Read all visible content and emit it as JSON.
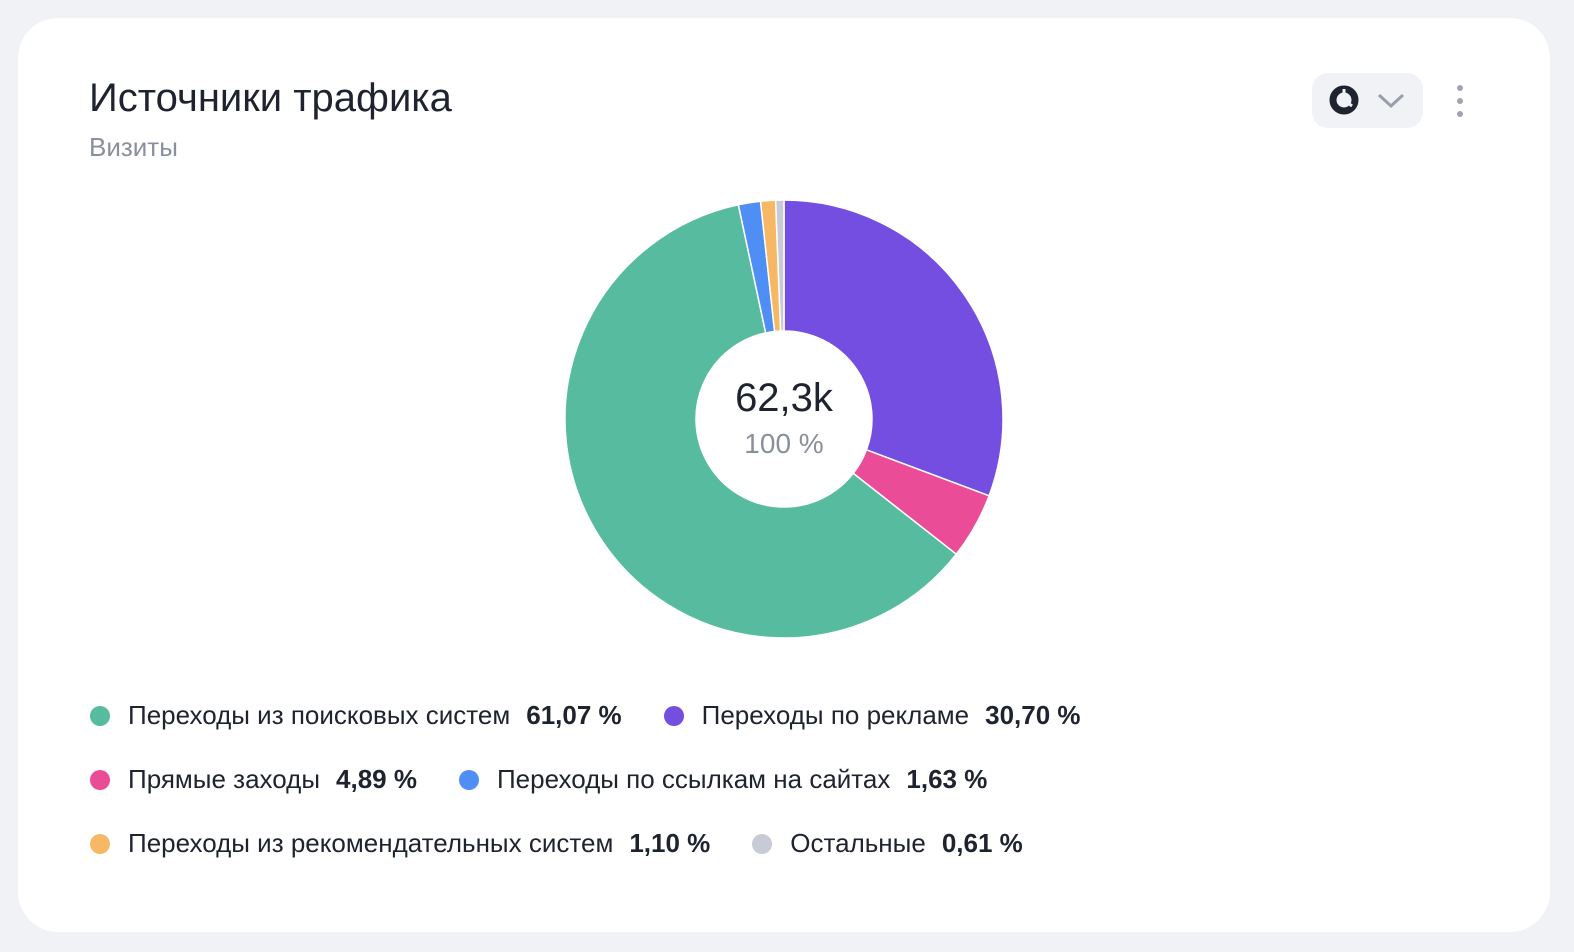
{
  "header": {
    "title": "Источники трафика",
    "subtitle": "Визиты"
  },
  "controls": {
    "chart_type_icon": "pie-chart-icon",
    "dropdown_icon": "chevron-down-icon",
    "more_icon": "more-vertical-icon"
  },
  "chart_data": {
    "type": "pie",
    "title": "Источники трафика",
    "subtitle": "Визиты",
    "center_value": "62,3k",
    "center_percent": "100 %",
    "slices": [
      {
        "label": "Переходы из поисковых систем",
        "value": 61.07,
        "display": "61,07 %",
        "color": "#57bba0"
      },
      {
        "label": "Переходы по рекламе",
        "value": 30.7,
        "display": "30,70 %",
        "color": "#744ee0"
      },
      {
        "label": "Прямые заходы",
        "value": 4.89,
        "display": "4,89 %",
        "color": "#ea4c98"
      },
      {
        "label": "Переходы по ссылкам на сайтах",
        "value": 1.63,
        "display": "1,63 %",
        "color": "#4f8ef5"
      },
      {
        "label": "Переходы из рекомендательных систем",
        "value": 1.1,
        "display": "1,10 %",
        "color": "#f6b865"
      },
      {
        "label": "Остальные",
        "value": 0.61,
        "display": "0,61 %",
        "color": "#c8cbd6"
      }
    ],
    "draw_order": [
      1,
      2,
      0,
      3,
      4,
      5
    ],
    "legend_rows": [
      [
        0,
        1
      ],
      [
        2,
        3
      ],
      [
        4,
        5
      ]
    ],
    "legend_position": "bottom"
  }
}
